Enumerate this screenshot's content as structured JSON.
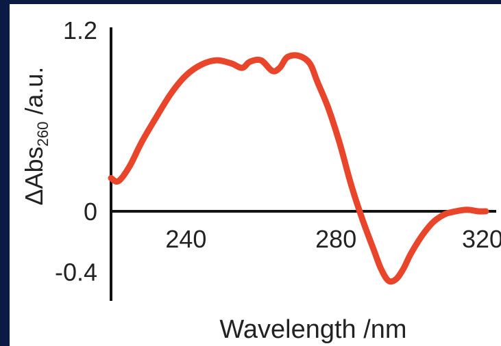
{
  "chart_data": {
    "type": "line",
    "xlabel": "Wavelength /nm",
    "ylabel": {
      "prefix": "ΔAbs",
      "subscript": "260",
      "suffix": " /a.u."
    },
    "x_ticks": [
      "240",
      "280",
      "320"
    ],
    "x_tick_values": [
      240,
      280,
      320
    ],
    "y_ticks": [
      "1.2",
      "0",
      "-0.4"
    ],
    "y_tick_values": [
      1.2,
      0,
      -0.4
    ],
    "xlim": [
      220,
      320
    ],
    "ylim": [
      -0.6,
      1.2
    ],
    "grid": false,
    "line_color": "#e8452b",
    "series": [
      {
        "x": [
          220,
          222,
          225,
          228,
          232,
          236,
          240,
          244,
          248,
          252,
          255,
          257,
          260,
          263,
          265,
          267,
          270,
          273,
          275,
          278,
          281,
          284,
          287,
          290,
          292,
          294,
          296,
          298,
          300,
          303,
          306,
          309,
          312,
          315,
          318,
          320
        ],
        "y": [
          0.22,
          0.2,
          0.3,
          0.45,
          0.62,
          0.78,
          0.9,
          0.97,
          1.0,
          0.98,
          0.95,
          0.99,
          1.0,
          0.93,
          0.95,
          1.02,
          1.03,
          0.98,
          0.86,
          0.68,
          0.45,
          0.18,
          -0.05,
          -0.25,
          -0.38,
          -0.46,
          -0.45,
          -0.38,
          -0.28,
          -0.16,
          -0.07,
          -0.02,
          0.0,
          0.01,
          0.0,
          0.0
        ]
      }
    ]
  }
}
